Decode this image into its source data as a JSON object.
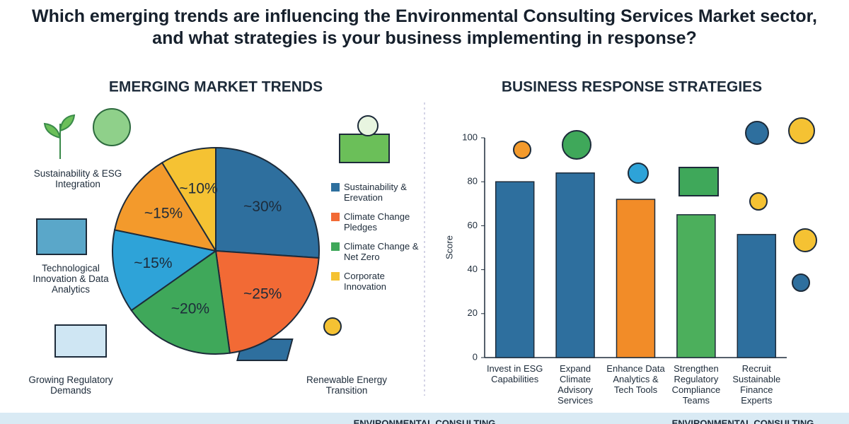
{
  "title": "Which emerging trends are influencing the Environmental Consulting Services Market sector, and what strategies is your business implementing in response?",
  "footer": [
    "ENVIRONMENTAL CONSULTING",
    "ENVIRONMENTAL CONSULTING"
  ],
  "chart_data": [
    {
      "type": "pie",
      "title": "EMERGING MARKET TRENDS",
      "categories": [
        "Sustainability & Erevation",
        "Climate Change Pledges",
        "Climate Change & Net Zero",
        null,
        null,
        "Corporate Innovation"
      ],
      "values": [
        30,
        25,
        20,
        15,
        15,
        10
      ],
      "value_labels": [
        "~30%",
        "~25%",
        "~20%",
        "~15%",
        "~15%",
        "~10%"
      ],
      "colors": [
        "#2e6f9e",
        "#f26a35",
        "#3fa85a",
        "#2ea3d8",
        "#f39a2c",
        "#f5c233"
      ],
      "annotations": [
        "Sustainability & ESG Integration",
        "Technological Innovation & Data Analytics",
        "Growing Regulatory Demands",
        "Renewable Energy Transition"
      ]
    },
    {
      "type": "bar",
      "title": "BUSINESS RESPONSE STRATEGIES",
      "ylabel": "Score",
      "categories": [
        "Invest in ESG Capabilities",
        "Expand Climate Advisory Services",
        "Enhance Data Analytics & Tech Tools",
        "Strengthen Regulatory Compliance Teams",
        "Recruit Sustainable Finance Experts"
      ],
      "values": [
        80,
        84,
        72,
        65,
        56
      ],
      "colors": [
        "#2e6f9e",
        "#2e6f9e",
        "#f28c28",
        "#4caf5c",
        "#2e6f9e"
      ],
      "ylim": [
        0,
        100
      ],
      "yticks": [
        0,
        20,
        40,
        60,
        80,
        100
      ]
    }
  ]
}
